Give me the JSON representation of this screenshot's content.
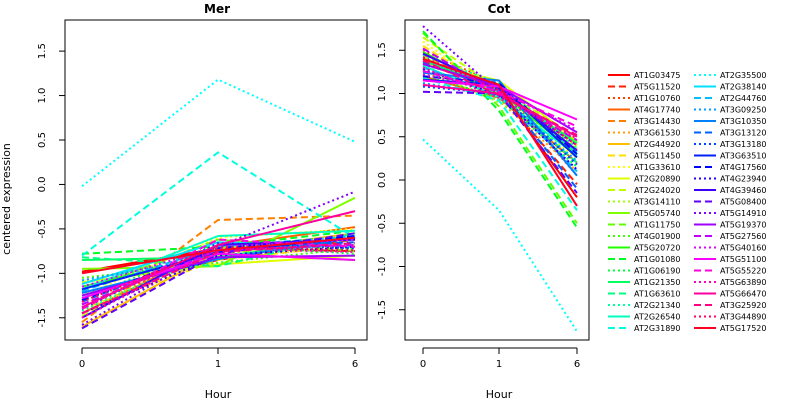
{
  "chart_data": [
    {
      "type": "line",
      "title": "Mer",
      "xlabel": "Hour",
      "ylabel": "centered expression",
      "x": [
        "0",
        "1",
        "6"
      ],
      "ylim": [
        -1.75,
        1.85
      ],
      "yticks": [
        "-1.5",
        "-1.0",
        "-0.5",
        "0.0",
        "0.5",
        "1.0",
        "1.5"
      ],
      "series": [
        {
          "name": "AT1G03475",
          "values": [
            -0.98,
            -0.72,
            -0.75
          ]
        },
        {
          "name": "AT5G11520",
          "values": [
            -1.22,
            -0.85,
            -0.62
          ]
        },
        {
          "name": "AT1G10760",
          "values": [
            -1.35,
            -0.78,
            -0.6
          ]
        },
        {
          "name": "AT4G17740",
          "values": [
            -1.45,
            -0.7,
            -0.48
          ]
        },
        {
          "name": "AT3G14430",
          "values": [
            -1.55,
            -0.4,
            -0.35
          ]
        },
        {
          "name": "AT3G61530",
          "values": [
            -1.3,
            -0.82,
            -0.7
          ]
        },
        {
          "name": "AT2G44920",
          "values": [
            -1.6,
            -0.75,
            -0.55
          ]
        },
        {
          "name": "AT5G11450",
          "values": [
            -1.4,
            -0.85,
            -0.68
          ]
        },
        {
          "name": "AT1G33610",
          "values": [
            -1.25,
            -0.6,
            -0.5
          ]
        },
        {
          "name": "AT2G20890",
          "values": [
            -1.1,
            -0.9,
            -0.8
          ]
        },
        {
          "name": "AT2G24020",
          "values": [
            -1.48,
            -0.72,
            -0.62
          ]
        },
        {
          "name": "AT3G14110",
          "values": [
            -1.38,
            -0.8,
            -0.55
          ]
        },
        {
          "name": "AT5G05740",
          "values": [
            -0.95,
            -0.92,
            -0.15
          ]
        },
        {
          "name": "AT1G11750",
          "values": [
            -1.2,
            -0.62,
            -0.75
          ]
        },
        {
          "name": "AT4G01900",
          "values": [
            -1.05,
            -0.88,
            -0.72
          ]
        },
        {
          "name": "AT5G20720",
          "values": [
            -1.15,
            -0.78,
            -0.85
          ]
        },
        {
          "name": "AT1G01080",
          "values": [
            -0.78,
            -0.7,
            -0.52
          ]
        },
        {
          "name": "AT1G06190",
          "values": [
            -1.28,
            -0.68,
            -0.78
          ]
        },
        {
          "name": "AT1G21350",
          "values": [
            -0.85,
            -0.82,
            -0.6
          ]
        },
        {
          "name": "AT1G63610",
          "values": [
            -0.82,
            -0.92,
            -0.55
          ]
        },
        {
          "name": "AT2G21340",
          "values": [
            -1.42,
            -0.75,
            -0.62
          ]
        },
        {
          "name": "AT2G26540",
          "values": [
            -1.18,
            -0.58,
            -0.52
          ]
        },
        {
          "name": "AT2G31890",
          "values": [
            -0.8,
            0.36,
            -0.6
          ]
        },
        {
          "name": "AT2G35500",
          "values": [
            -0.02,
            1.18,
            0.48
          ]
        },
        {
          "name": "AT2G38140",
          "values": [
            -1.12,
            -0.65,
            -0.7
          ]
        },
        {
          "name": "AT2G44760",
          "values": [
            -1.2,
            -0.7,
            -0.58
          ]
        },
        {
          "name": "AT3G09250",
          "values": [
            -1.08,
            -0.8,
            -0.66
          ]
        },
        {
          "name": "AT3G10350",
          "values": [
            -1.22,
            -0.84,
            -0.6
          ]
        },
        {
          "name": "AT3G13120",
          "values": [
            -1.32,
            -0.72,
            -0.65
          ]
        },
        {
          "name": "AT3G13180",
          "values": [
            -1.4,
            -0.66,
            -0.72
          ]
        },
        {
          "name": "AT3G63510",
          "values": [
            -1.18,
            -0.76,
            -0.6
          ]
        },
        {
          "name": "AT4G17560",
          "values": [
            -1.3,
            -0.72,
            -0.58
          ]
        },
        {
          "name": "AT4G23940",
          "values": [
            -1.45,
            -0.8,
            -0.7
          ]
        },
        {
          "name": "AT4G39460",
          "values": [
            -1.5,
            -0.68,
            -0.62
          ]
        },
        {
          "name": "AT5G08400",
          "values": [
            -1.62,
            -0.78,
            -0.55
          ]
        },
        {
          "name": "AT5G14910",
          "values": [
            -1.58,
            -0.7,
            -0.08
          ]
        },
        {
          "name": "AT5G19370",
          "values": [
            -1.25,
            -0.82,
            -0.8
          ]
        },
        {
          "name": "AT5G27560",
          "values": [
            -1.35,
            -0.74,
            -0.68
          ]
        },
        {
          "name": "AT5G40160",
          "values": [
            -1.15,
            -0.7,
            -0.62
          ]
        },
        {
          "name": "AT5G51100",
          "values": [
            -1.28,
            -0.78,
            -0.85
          ]
        },
        {
          "name": "AT5G55220",
          "values": [
            -1.4,
            -0.62,
            -0.7
          ]
        },
        {
          "name": "AT5G63890",
          "values": [
            -1.5,
            -0.72,
            -0.76
          ]
        },
        {
          "name": "AT5G66470",
          "values": [
            -1.38,
            -0.68,
            -0.3
          ]
        },
        {
          "name": "AT3G25920",
          "values": [
            -1.45,
            -0.76,
            -0.66
          ]
        },
        {
          "name": "AT3G44890",
          "values": [
            -1.32,
            -0.7,
            -0.74
          ]
        },
        {
          "name": "AT5G17520",
          "values": [
            -1.0,
            -0.74,
            -0.6
          ]
        }
      ]
    },
    {
      "type": "line",
      "title": "Cot",
      "xlabel": "Hour",
      "ylabel": "",
      "x": [
        "0",
        "1",
        "6"
      ],
      "ylim": [
        -1.85,
        1.85
      ],
      "yticks": [
        "-1.5",
        "-1.0",
        "-0.5",
        "0.0",
        "0.5",
        "1.0",
        "1.5"
      ],
      "series": [
        {
          "name": "AT1G03475",
          "values": [
            1.35,
            1.05,
            -0.2
          ]
        },
        {
          "name": "AT5G11520",
          "values": [
            1.3,
            1.0,
            -0.05
          ]
        },
        {
          "name": "AT1G10760",
          "values": [
            1.5,
            1.1,
            0.05
          ]
        },
        {
          "name": "AT4G17740",
          "values": [
            1.2,
            0.95,
            0.2
          ]
        },
        {
          "name": "AT3G14430",
          "values": [
            1.45,
            1.02,
            0.35
          ]
        },
        {
          "name": "AT3G61530",
          "values": [
            1.25,
            0.92,
            0.1
          ]
        },
        {
          "name": "AT2G44920",
          "values": [
            1.4,
            1.08,
            0.3
          ]
        },
        {
          "name": "AT5G11450",
          "values": [
            1.55,
            1.0,
            0.4
          ]
        },
        {
          "name": "AT1G33610",
          "values": [
            1.6,
            0.98,
            0.25
          ]
        },
        {
          "name": "AT2G20890",
          "values": [
            1.35,
            1.15,
            0.45
          ]
        },
        {
          "name": "AT2G24020",
          "values": [
            1.65,
            1.05,
            0.5
          ]
        },
        {
          "name": "AT3G14110",
          "values": [
            1.28,
            0.9,
            0.38
          ]
        },
        {
          "name": "AT5G05740",
          "values": [
            1.42,
            1.0,
            0.44
          ]
        },
        {
          "name": "AT1G11750",
          "values": [
            1.7,
            0.85,
            -0.5
          ]
        },
        {
          "name": "AT4G01900",
          "values": [
            1.33,
            1.1,
            0.35
          ]
        },
        {
          "name": "AT5G20720",
          "values": [
            1.48,
            1.02,
            0.3
          ]
        },
        {
          "name": "AT1G01080",
          "values": [
            1.72,
            0.8,
            -0.55
          ]
        },
        {
          "name": "AT1G06190",
          "values": [
            1.22,
            0.95,
            0.15
          ]
        },
        {
          "name": "AT1G21350",
          "values": [
            1.38,
            1.05,
            0.42
          ]
        },
        {
          "name": "AT1G63610",
          "values": [
            1.26,
            1.0,
            0.2
          ]
        },
        {
          "name": "AT2G21340",
          "values": [
            1.44,
            1.12,
            0.36
          ]
        },
        {
          "name": "AT2G26540",
          "values": [
            1.32,
            0.96,
            0.28
          ]
        },
        {
          "name": "AT2G31890",
          "values": [
            1.18,
            0.92,
            -0.35
          ]
        },
        {
          "name": "AT2G35500",
          "values": [
            0.47,
            -0.35,
            -1.75
          ]
        },
        {
          "name": "AT2G38140",
          "values": [
            1.4,
            1.08,
            0.32
          ]
        },
        {
          "name": "AT2G44760",
          "values": [
            1.3,
            1.02,
            0.1
          ]
        },
        {
          "name": "AT3G09250",
          "values": [
            1.12,
            0.98,
            0.22
          ]
        },
        {
          "name": "AT3G10350",
          "values": [
            1.24,
            1.15,
            0.05
          ]
        },
        {
          "name": "AT3G13120",
          "values": [
            1.36,
            1.04,
            -0.1
          ]
        },
        {
          "name": "AT3G13180",
          "values": [
            1.08,
            1.0,
            0.18
          ]
        },
        {
          "name": "AT3G63510",
          "values": [
            1.16,
            1.1,
            0.26
          ]
        },
        {
          "name": "AT4G17560",
          "values": [
            1.2,
            1.12,
            0.3
          ]
        },
        {
          "name": "AT4G23940",
          "values": [
            1.28,
            0.98,
            0.12
          ]
        },
        {
          "name": "AT4G39460",
          "values": [
            1.46,
            1.06,
            0.34
          ]
        },
        {
          "name": "AT5G08400",
          "values": [
            1.02,
            1.0,
            -0.15
          ]
        },
        {
          "name": "AT5G14910",
          "values": [
            1.78,
            1.02,
            0.4
          ]
        },
        {
          "name": "AT5G19370",
          "values": [
            1.34,
            1.08,
            0.55
          ]
        },
        {
          "name": "AT5G27560",
          "values": [
            1.52,
            1.0,
            0.46
          ]
        },
        {
          "name": "AT5G40160",
          "values": [
            1.22,
            1.04,
            0.58
          ]
        },
        {
          "name": "AT5G51100",
          "values": [
            1.15,
            1.08,
            0.7
          ]
        },
        {
          "name": "AT5G55220",
          "values": [
            1.26,
            1.02,
            0.62
          ]
        },
        {
          "name": "AT5G63890",
          "values": [
            1.3,
            0.95,
            0.48
          ]
        },
        {
          "name": "AT5G66470",
          "values": [
            1.1,
            1.0,
            0.5
          ]
        },
        {
          "name": "AT3G25920",
          "values": [
            1.38,
            0.98,
            0.52
          ]
        },
        {
          "name": "AT3G44890",
          "values": [
            1.42,
            1.04,
            0.4
          ]
        },
        {
          "name": "AT5G17520",
          "values": [
            1.4,
            1.1,
            -0.3
          ]
        }
      ]
    }
  ],
  "legend": {
    "placement": "right",
    "entries": [
      {
        "name": "AT1G03475",
        "color": "#ff0000",
        "dash": "solid"
      },
      {
        "name": "AT5G11520",
        "color": "#ff2000",
        "dash": "dashed"
      },
      {
        "name": "AT1G10760",
        "color": "#ff4000",
        "dash": "dotted"
      },
      {
        "name": "AT4G17740",
        "color": "#ff6000",
        "dash": "solid"
      },
      {
        "name": "AT3G14430",
        "color": "#ff8000",
        "dash": "dashed"
      },
      {
        "name": "AT3G61530",
        "color": "#ff9f00",
        "dash": "dotted"
      },
      {
        "name": "AT2G44920",
        "color": "#ffbf00",
        "dash": "solid"
      },
      {
        "name": "AT5G11450",
        "color": "#ffdf00",
        "dash": "dashed"
      },
      {
        "name": "AT1G33610",
        "color": "#ffff00",
        "dash": "dotted"
      },
      {
        "name": "AT2G20890",
        "color": "#dfff00",
        "dash": "solid"
      },
      {
        "name": "AT2G24020",
        "color": "#bfff00",
        "dash": "dashed"
      },
      {
        "name": "AT3G14110",
        "color": "#9fff00",
        "dash": "dotted"
      },
      {
        "name": "AT5G05740",
        "color": "#80ff00",
        "dash": "solid"
      },
      {
        "name": "AT1G11750",
        "color": "#60ff00",
        "dash": "dashed"
      },
      {
        "name": "AT4G01900",
        "color": "#40ff00",
        "dash": "dotted"
      },
      {
        "name": "AT5G20720",
        "color": "#20ff00",
        "dash": "solid"
      },
      {
        "name": "AT1G01080",
        "color": "#00ff20",
        "dash": "dashed"
      },
      {
        "name": "AT1G06190",
        "color": "#00ff40",
        "dash": "dotted"
      },
      {
        "name": "AT1G21350",
        "color": "#00ff60",
        "dash": "solid"
      },
      {
        "name": "AT1G63610",
        "color": "#00ff80",
        "dash": "dashed"
      },
      {
        "name": "AT2G21340",
        "color": "#00ff9f",
        "dash": "dotted"
      },
      {
        "name": "AT2G26540",
        "color": "#00ffbf",
        "dash": "solid"
      },
      {
        "name": "AT2G31890",
        "color": "#00ffdf",
        "dash": "dashed"
      },
      {
        "name": "AT2G35500",
        "color": "#00ffff",
        "dash": "dotted"
      },
      {
        "name": "AT2G38140",
        "color": "#00dfff",
        "dash": "solid"
      },
      {
        "name": "AT2G44760",
        "color": "#00bfff",
        "dash": "dashed"
      },
      {
        "name": "AT3G09250",
        "color": "#009fff",
        "dash": "dotted"
      },
      {
        "name": "AT3G10350",
        "color": "#0080ff",
        "dash": "solid"
      },
      {
        "name": "AT3G13120",
        "color": "#0060ff",
        "dash": "dashed"
      },
      {
        "name": "AT3G13180",
        "color": "#0040ff",
        "dash": "dotted"
      },
      {
        "name": "AT3G63510",
        "color": "#0020ff",
        "dash": "solid"
      },
      {
        "name": "AT4G17560",
        "color": "#0000ff",
        "dash": "dashed"
      },
      {
        "name": "AT4G23940",
        "color": "#2000ff",
        "dash": "dotted"
      },
      {
        "name": "AT4G39460",
        "color": "#4000ff",
        "dash": "solid"
      },
      {
        "name": "AT5G08400",
        "color": "#6000ff",
        "dash": "dashed"
      },
      {
        "name": "AT5G14910",
        "color": "#8000ff",
        "dash": "dotted"
      },
      {
        "name": "AT5G19370",
        "color": "#9f00ff",
        "dash": "solid"
      },
      {
        "name": "AT5G27560",
        "color": "#bf00ff",
        "dash": "dashed"
      },
      {
        "name": "AT5G40160",
        "color": "#df00ff",
        "dash": "dotted"
      },
      {
        "name": "AT5G51100",
        "color": "#ff00ff",
        "dash": "solid"
      },
      {
        "name": "AT5G55220",
        "color": "#ff00df",
        "dash": "dashed"
      },
      {
        "name": "AT5G63890",
        "color": "#ff00bf",
        "dash": "dotted"
      },
      {
        "name": "AT5G66470",
        "color": "#ff009f",
        "dash": "solid"
      },
      {
        "name": "AT3G25920",
        "color": "#ff0080",
        "dash": "dashed"
      },
      {
        "name": "AT3G44890",
        "color": "#ff0060",
        "dash": "dotted"
      },
      {
        "name": "AT5G17520",
        "color": "#ff0020",
        "dash": "solid"
      }
    ]
  }
}
